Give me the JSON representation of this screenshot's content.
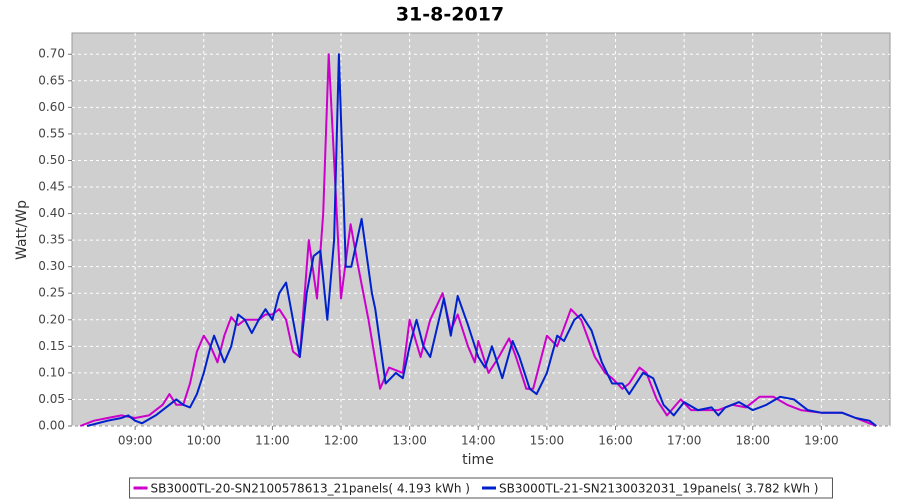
{
  "chart_data": {
    "type": "line",
    "title": "31-8-2017",
    "x_label": "time",
    "y_label": "Watt/Wp",
    "xlim": [
      8.08,
      20.0
    ],
    "ylim": [
      0,
      0.74
    ],
    "grid": true,
    "legend": "bottom",
    "xticks": [
      {
        "value": 9,
        "label": "09:00"
      },
      {
        "value": 10,
        "label": "10:00"
      },
      {
        "value": 11,
        "label": "11:00"
      },
      {
        "value": 12,
        "label": "12:00"
      },
      {
        "value": 13,
        "label": "13:00"
      },
      {
        "value": 14,
        "label": "14:00"
      },
      {
        "value": 15,
        "label": "15:00"
      },
      {
        "value": 16,
        "label": "16:00"
      },
      {
        "value": 17,
        "label": "17:00"
      },
      {
        "value": 18,
        "label": "18:00"
      },
      {
        "value": 19,
        "label": "19:00"
      }
    ],
    "yticks": [
      {
        "value": 0,
        "label": "0.00"
      },
      {
        "value": 0.05,
        "label": "0.05"
      },
      {
        "value": 0.1,
        "label": "0.10"
      },
      {
        "value": 0.15,
        "label": "0.15"
      },
      {
        "value": 0.2,
        "label": "0.20"
      },
      {
        "value": 0.25,
        "label": "0.25"
      },
      {
        "value": 0.3,
        "label": "0.30"
      },
      {
        "value": 0.35,
        "label": "0.35"
      },
      {
        "value": 0.4,
        "label": "0.40"
      },
      {
        "value": 0.45,
        "label": "0.45"
      },
      {
        "value": 0.5,
        "label": "0.50"
      },
      {
        "value": 0.55,
        "label": "0.55"
      },
      {
        "value": 0.6,
        "label": "0.60"
      },
      {
        "value": 0.65,
        "label": "0.65"
      },
      {
        "value": 0.7,
        "label": "0.70"
      }
    ],
    "series": [
      {
        "name": "SB3000TL-20-SN2100578613_21panels( 4.193 kWh )",
        "color": "#cc00cc",
        "x": [
          8.2,
          8.4,
          8.6,
          8.8,
          9.0,
          9.2,
          9.4,
          9.5,
          9.6,
          9.7,
          9.8,
          9.9,
          10.0,
          10.1,
          10.2,
          10.3,
          10.4,
          10.5,
          10.6,
          10.7,
          10.8,
          10.9,
          11.0,
          11.1,
          11.2,
          11.3,
          11.4,
          11.53,
          11.65,
          11.74,
          11.82,
          11.9,
          12.0,
          12.14,
          12.25,
          12.4,
          12.57,
          12.7,
          12.9,
          13.0,
          13.16,
          13.3,
          13.48,
          13.6,
          13.7,
          13.85,
          13.95,
          14.0,
          14.15,
          14.3,
          14.45,
          14.55,
          14.7,
          14.8,
          15.0,
          15.15,
          15.35,
          15.5,
          15.7,
          15.85,
          15.95,
          16.1,
          16.2,
          16.35,
          16.45,
          16.6,
          16.75,
          16.95,
          17.1,
          17.3,
          17.5,
          17.7,
          17.9,
          18.1,
          18.3,
          18.5,
          18.7,
          19.0,
          19.3,
          19.5,
          19.7,
          19.8
        ],
        "values": [
          0,
          0.01,
          0.015,
          0.02,
          0.015,
          0.02,
          0.04,
          0.06,
          0.04,
          0.04,
          0.08,
          0.14,
          0.17,
          0.15,
          0.12,
          0.17,
          0.205,
          0.19,
          0.2,
          0.2,
          0.2,
          0.21,
          0.21,
          0.22,
          0.2,
          0.14,
          0.13,
          0.35,
          0.24,
          0.4,
          0.7,
          0.5,
          0.24,
          0.38,
          0.3,
          0.2,
          0.07,
          0.11,
          0.1,
          0.2,
          0.13,
          0.2,
          0.25,
          0.18,
          0.21,
          0.15,
          0.12,
          0.16,
          0.1,
          0.13,
          0.165,
          0.13,
          0.07,
          0.07,
          0.17,
          0.15,
          0.22,
          0.2,
          0.13,
          0.1,
          0.09,
          0.07,
          0.08,
          0.11,
          0.1,
          0.05,
          0.02,
          0.05,
          0.03,
          0.03,
          0.03,
          0.04,
          0.035,
          0.055,
          0.055,
          0.04,
          0.03,
          0.025,
          0.025,
          0.015,
          0.005,
          0
        ]
      },
      {
        "name": "SB3000TL-21-SN2130032031_19panels( 3.782 kWh )",
        "color": "#0022cc",
        "x": [
          8.3,
          8.6,
          8.8,
          8.9,
          9.0,
          9.1,
          9.3,
          9.5,
          9.6,
          9.7,
          9.8,
          9.9,
          10.0,
          10.1,
          10.15,
          10.3,
          10.4,
          10.5,
          10.6,
          10.7,
          10.8,
          10.9,
          11.0,
          11.1,
          11.2,
          11.3,
          11.4,
          11.5,
          11.6,
          11.7,
          11.8,
          11.9,
          11.97,
          12.07,
          12.15,
          12.3,
          12.45,
          12.5,
          12.65,
          12.8,
          12.9,
          13.0,
          13.1,
          13.2,
          13.3,
          13.5,
          13.6,
          13.7,
          13.85,
          14.0,
          14.1,
          14.2,
          14.35,
          14.5,
          14.6,
          14.75,
          14.85,
          15.0,
          15.15,
          15.25,
          15.4,
          15.5,
          15.65,
          15.8,
          15.95,
          16.1,
          16.2,
          16.4,
          16.55,
          16.7,
          16.85,
          17.0,
          17.2,
          17.4,
          17.5,
          17.6,
          17.8,
          18.0,
          18.2,
          18.4,
          18.6,
          18.8,
          19.0,
          19.3,
          19.5,
          19.7,
          19.8
        ],
        "values": [
          0,
          0.01,
          0.015,
          0.02,
          0.01,
          0.005,
          0.02,
          0.04,
          0.05,
          0.04,
          0.035,
          0.06,
          0.1,
          0.15,
          0.17,
          0.12,
          0.15,
          0.21,
          0.2,
          0.175,
          0.2,
          0.22,
          0.2,
          0.25,
          0.27,
          0.2,
          0.13,
          0.25,
          0.32,
          0.33,
          0.2,
          0.35,
          0.7,
          0.3,
          0.3,
          0.39,
          0.25,
          0.22,
          0.08,
          0.1,
          0.09,
          0.15,
          0.2,
          0.15,
          0.13,
          0.24,
          0.17,
          0.245,
          0.19,
          0.13,
          0.11,
          0.15,
          0.09,
          0.16,
          0.13,
          0.07,
          0.06,
          0.1,
          0.17,
          0.16,
          0.2,
          0.21,
          0.18,
          0.12,
          0.08,
          0.08,
          0.06,
          0.1,
          0.09,
          0.04,
          0.02,
          0.045,
          0.03,
          0.035,
          0.02,
          0.035,
          0.045,
          0.03,
          0.04,
          0.055,
          0.05,
          0.03,
          0.025,
          0.025,
          0.015,
          0.01,
          0
        ]
      }
    ]
  }
}
